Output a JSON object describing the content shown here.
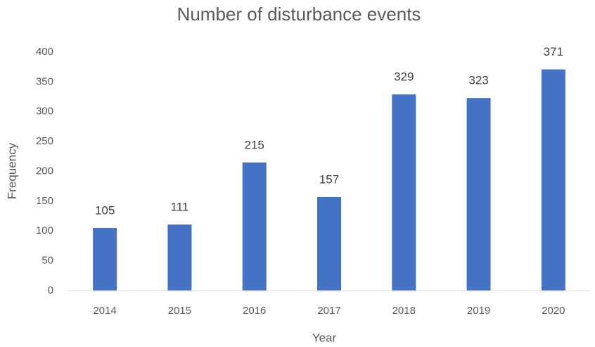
{
  "chart_data": {
    "type": "bar",
    "title": "Number of disturbance events",
    "x_label": "Year",
    "y_label": "Frequency",
    "categories": [
      "2014",
      "2015",
      "2016",
      "2017",
      "2018",
      "2019",
      "2020"
    ],
    "values": [
      105,
      111,
      215,
      157,
      329,
      323,
      371
    ],
    "color": "#4472c4",
    "ylim": [
      0,
      400
    ],
    "yticks": [
      0,
      50,
      100,
      150,
      200,
      250,
      300,
      350,
      400
    ],
    "grid": false,
    "data_labels": true
  }
}
